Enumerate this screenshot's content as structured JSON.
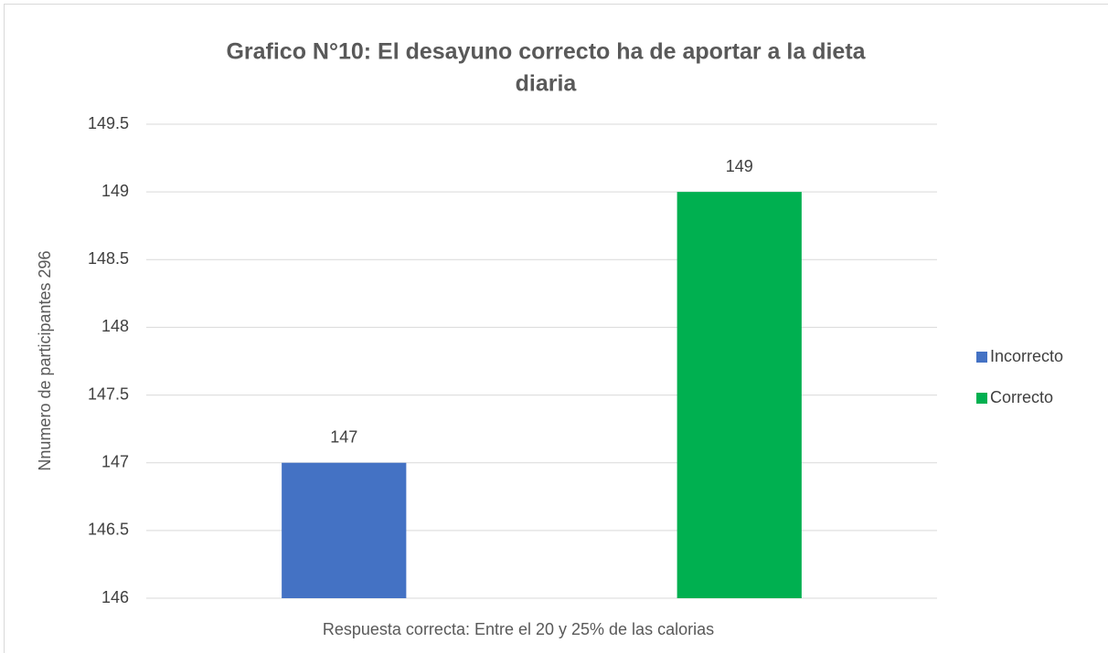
{
  "chart_data": {
    "type": "bar",
    "title": [
      "Grafico N°10: El desayuno correcto ha de aportar a la dieta",
      "diaria"
    ],
    "ylabel": "Nnumero de participantes 296",
    "xlabel": "Respuesta correcta: Entre el 20 y 25% de las calorias",
    "categories": [
      null
    ],
    "series": [
      {
        "name": "Incorrecto",
        "color": "#4472c4",
        "values": [
          147
        ]
      },
      {
        "name": "Correcto",
        "color": "#00b050",
        "values": [
          149
        ]
      }
    ],
    "ylim": [
      146,
      149.5
    ],
    "yticks": [
      146,
      146.5,
      147,
      147.5,
      148,
      148.5,
      149,
      149.5
    ],
    "grid": true,
    "legend": "right"
  }
}
